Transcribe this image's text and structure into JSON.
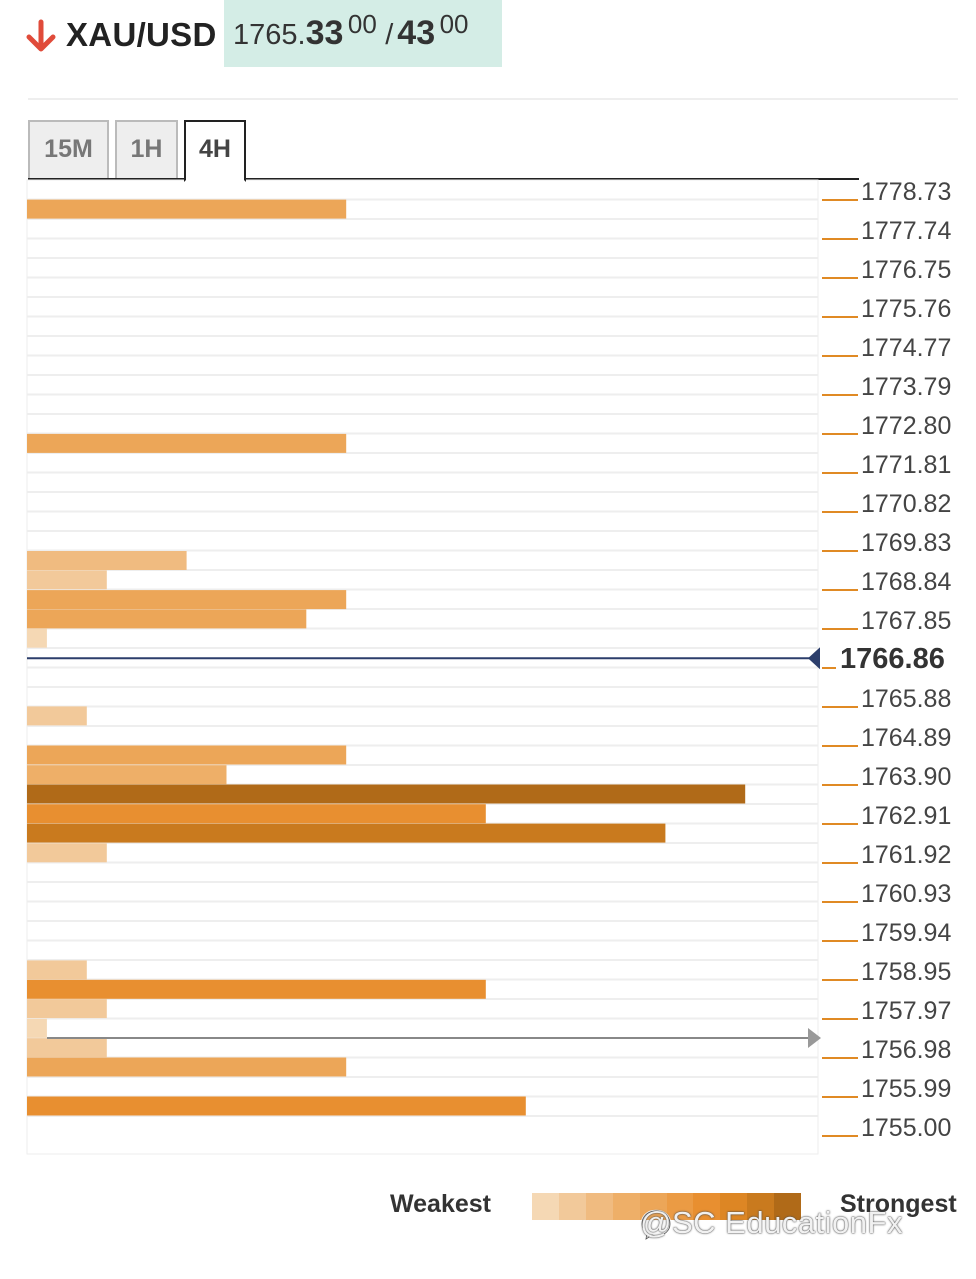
{
  "header": {
    "symbol": "XAU/USD",
    "direction_icon": "down-arrow-icon",
    "direction_color": "#e04b3a",
    "bid_prefix": "1765.",
    "bid_bold": "33",
    "bid_sup": "00",
    "separator": "/",
    "ask_bold": "43",
    "ask_sup": "00"
  },
  "tabs": [
    {
      "label": "15M",
      "active": false
    },
    {
      "label": "1H",
      "active": false
    },
    {
      "label": "4H",
      "active": true
    }
  ],
  "chart_data": {
    "type": "bar",
    "orientation": "horizontal",
    "y_labels": [
      "1778.73",
      "1777.74",
      "1776.75",
      "1775.76",
      "1774.77",
      "1773.79",
      "1772.80",
      "1771.81",
      "1770.82",
      "1769.83",
      "1768.84",
      "1767.85",
      "1766.86",
      "1765.88",
      "1764.89",
      "1763.90",
      "1762.91",
      "1761.92",
      "1760.93",
      "1759.94",
      "1758.95",
      "1757.97",
      "1756.98",
      "1755.99",
      "1755.00"
    ],
    "current_price": "1766.86",
    "max_strength": 9,
    "bars": [
      {
        "price": 1778.24,
        "strength": 4
      },
      {
        "price": 1772.3,
        "strength": 4
      },
      {
        "price": 1769.33,
        "strength": 2
      },
      {
        "price": 1768.84,
        "strength": 1
      },
      {
        "price": 1768.34,
        "strength": 4
      },
      {
        "price": 1767.85,
        "strength": 3.5
      },
      {
        "price": 1767.36,
        "strength": 0.25
      },
      {
        "price": 1765.39,
        "strength": 0.75
      },
      {
        "price": 1764.4,
        "strength": 4
      },
      {
        "price": 1763.9,
        "strength": 2.5
      },
      {
        "price": 1763.41,
        "strength": 9
      },
      {
        "price": 1762.91,
        "strength": 5.75
      },
      {
        "price": 1762.42,
        "strength": 8
      },
      {
        "price": 1761.92,
        "strength": 1
      },
      {
        "price": 1758.95,
        "strength": 0.75
      },
      {
        "price": 1758.46,
        "strength": 5.75
      },
      {
        "price": 1757.97,
        "strength": 1
      },
      {
        "price": 1757.47,
        "strength": 0.25
      },
      {
        "price": 1756.98,
        "strength": 1
      },
      {
        "price": 1756.49,
        "strength": 4
      },
      {
        "price": 1755.5,
        "strength": 6.25
      }
    ],
    "color_scale": [
      "#f5d8b4",
      "#f2c99a",
      "#f0bb80",
      "#eeaf68",
      "#eca658",
      "#eb9b44",
      "#e88f30",
      "#dd8624",
      "#c97a1e",
      "#b06a18"
    ]
  },
  "legend": {
    "weak_label": "Weakest",
    "strong_label": "Strongest"
  },
  "watermark": {
    "text": "@SC EducationFx",
    "icon": "chat-bubble-icon"
  }
}
